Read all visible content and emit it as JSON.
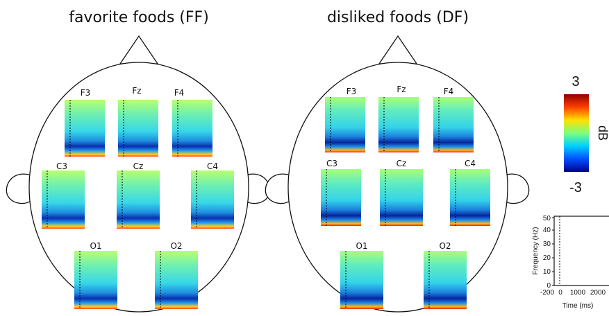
{
  "panels": [
    {
      "title": "favorite foods (FF)",
      "electrodes": [
        "F3",
        "Fz",
        "F4",
        "C3",
        "Cz",
        "C4",
        "O1",
        "O2"
      ]
    },
    {
      "title": "disliked foods (DF)",
      "electrodes": [
        "F3",
        "Fz",
        "F4",
        "C3",
        "Cz",
        "C4",
        "O1",
        "O2"
      ]
    }
  ],
  "colorbar": {
    "max_label": "3",
    "min_label": "-3",
    "unit": "dB",
    "colors": [
      "#00008f",
      "#0050ff",
      "#00d0ff",
      "#7dff7d",
      "#ffe000",
      "#ff4000",
      "#8f0000"
    ]
  },
  "legend_axes": {
    "ylabel": "Frequency (Hz)",
    "xlabel": "Time (ms)",
    "yticks": [
      "0",
      "10",
      "20",
      "30",
      "40",
      "50"
    ],
    "xticks": [
      "-200",
      "0",
      "1000",
      "2000"
    ]
  }
}
